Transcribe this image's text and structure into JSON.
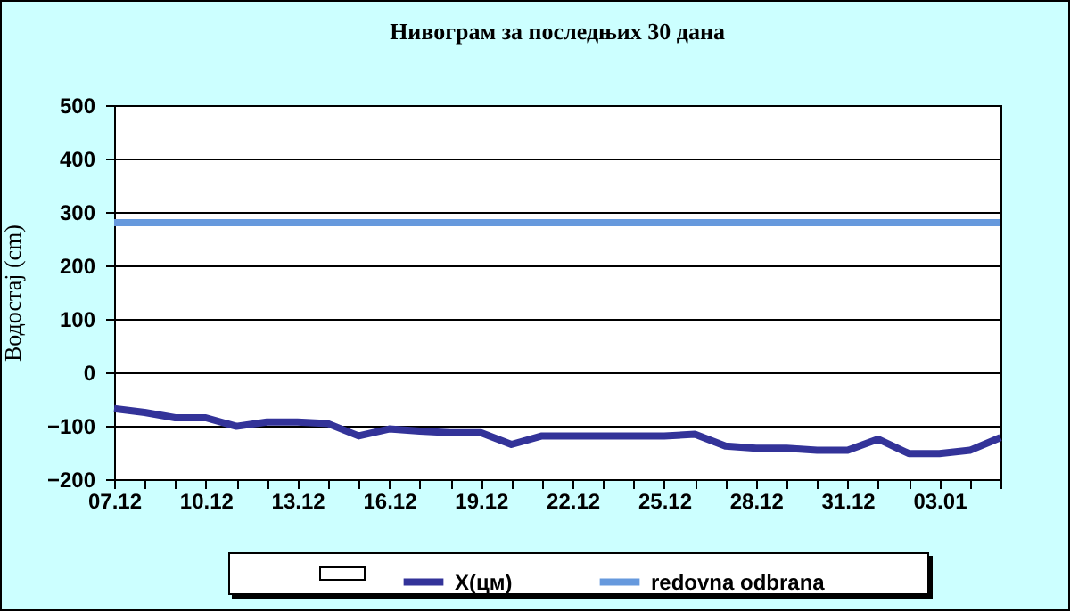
{
  "chart_data": {
    "type": "line",
    "title": "Нивограм за последњих 30 дана",
    "ylabel": "Водостај (cm)",
    "categories": [
      "07.12",
      null,
      null,
      "10.12",
      null,
      null,
      "13.12",
      null,
      null,
      "16.12",
      null,
      null,
      "19.12",
      null,
      null,
      "22.12",
      null,
      null,
      "25.12",
      null,
      null,
      "28.12",
      null,
      null,
      "31.12",
      null,
      null,
      "03.01",
      null,
      null
    ],
    "series": [
      {
        "name": "X(цм)",
        "color": "#333399",
        "values": [
          -68,
          -75,
          -85,
          -85,
          -101,
          -93,
          -93,
          -96,
          -119,
          -106,
          -110,
          -113,
          -113,
          -135,
          -119,
          -119,
          -119,
          -119,
          -119,
          -116,
          -138,
          -142,
          -142,
          -146,
          -146,
          -125,
          -152,
          -152,
          -146,
          -122
        ]
      },
      {
        "name": "redovna odbrana",
        "color": "#6699dd",
        "values": [
          280,
          280,
          280,
          280,
          280,
          280,
          280,
          280,
          280,
          280,
          280,
          280,
          280,
          280,
          280,
          280,
          280,
          280,
          280,
          280,
          280,
          280,
          280,
          280,
          280,
          280,
          280,
          280,
          280,
          280
        ]
      }
    ],
    "ylim": [
      -200,
      500
    ],
    "yticks": [
      -200,
      -100,
      0,
      100,
      200,
      300,
      400,
      500
    ],
    "grid": "y",
    "legend": "bottom",
    "marker": "none",
    "line_style": "solid"
  }
}
